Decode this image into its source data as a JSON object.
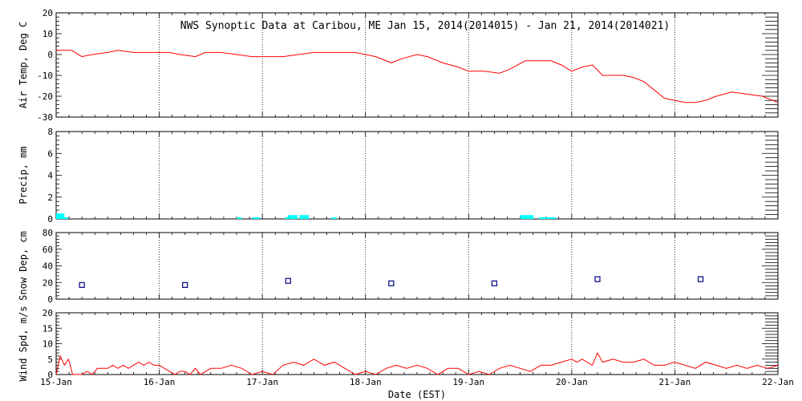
{
  "chart_data": {
    "type": "line",
    "title": "NWS Synoptic Data at Caribou, ME   Jan 15, 2014(2014015) - Jan 21, 2014(2014021)",
    "xlabel": "Date (EST)",
    "x_tick_labels": [
      "15-Jan",
      "16-Jan",
      "17-Jan",
      "18-Jan",
      "19-Jan",
      "20-Jan",
      "21-Jan",
      "22-Jan"
    ],
    "xlim_days": [
      0,
      7
    ],
    "grid": true,
    "panels": [
      {
        "key": "airtemp",
        "type": "line",
        "ylabel": "Air Temp, Deg C",
        "ylim": [
          -30,
          20
        ],
        "yticks": [
          -30,
          -20,
          -10,
          0,
          10,
          20
        ],
        "color": "#ff0000",
        "x": [
          0,
          0.15,
          0.25,
          0.35,
          0.5,
          0.6,
          0.75,
          0.9,
          1.0,
          1.1,
          1.2,
          1.35,
          1.45,
          1.6,
          1.75,
          1.9,
          2.0,
          2.2,
          2.35,
          2.5,
          2.6,
          2.75,
          2.9,
          3.0,
          3.1,
          3.25,
          3.35,
          3.5,
          3.6,
          3.75,
          3.9,
          4.0,
          4.15,
          4.3,
          4.4,
          4.55,
          4.65,
          4.8,
          4.9,
          5.0,
          5.1,
          5.2,
          5.3,
          5.4,
          5.5,
          5.6,
          5.7,
          5.8,
          5.9,
          6.0,
          6.1,
          6.2,
          6.3,
          6.4,
          6.55,
          6.7,
          6.85,
          7.0
        ],
        "y": [
          2,
          2,
          -1,
          0,
          1,
          2,
          1,
          1,
          1,
          1,
          0,
          -1,
          1,
          1,
          0,
          -1,
          -1,
          -1,
          0,
          1,
          1,
          1,
          1,
          0,
          -1,
          -4,
          -2,
          0,
          -1,
          -4,
          -6,
          -8,
          -8,
          -9,
          -7,
          -3,
          -3,
          -3,
          -5,
          -8,
          -6,
          -5,
          -10,
          -10,
          -10,
          -11,
          -13,
          -17,
          -21,
          -22,
          -23,
          -23,
          -22,
          -20,
          -18,
          -19,
          -20,
          -23
        ]
      },
      {
        "key": "precip",
        "type": "bar",
        "ylabel": "Precip, mm",
        "ylim": [
          0,
          8
        ],
        "yticks": [
          0,
          2,
          4,
          6,
          8
        ],
        "color": "#00ffff",
        "bars": [
          {
            "x0": 0.0,
            "x1": 0.08,
            "value": 0.5
          },
          {
            "x0": 0.08,
            "x1": 0.12,
            "value": 0.15
          },
          {
            "x0": 1.75,
            "x1": 1.8,
            "value": 0.15
          },
          {
            "x0": 1.9,
            "x1": 1.98,
            "value": 0.15
          },
          {
            "x0": 2.22,
            "x1": 2.25,
            "value": 0.15
          },
          {
            "x0": 2.25,
            "x1": 2.34,
            "value": 0.35
          },
          {
            "x0": 2.36,
            "x1": 2.45,
            "value": 0.35
          },
          {
            "x0": 2.67,
            "x1": 2.72,
            "value": 0.15
          },
          {
            "x0": 4.5,
            "x1": 4.63,
            "value": 0.35
          },
          {
            "x0": 4.68,
            "x1": 4.85,
            "value": 0.15
          }
        ]
      },
      {
        "key": "snowdep",
        "type": "scatter",
        "ylabel": "Snow Dep, cm",
        "ylim": [
          0,
          80
        ],
        "yticks": [
          0,
          20,
          40,
          60,
          80
        ],
        "color": "#000080",
        "x": [
          0.25,
          1.25,
          2.25,
          3.25,
          4.25,
          5.25,
          6.25
        ],
        "y": [
          17,
          17,
          22,
          19,
          19,
          24,
          24
        ]
      },
      {
        "key": "windspd",
        "type": "line",
        "ylabel": "Wind Spd, m/s",
        "ylim": [
          0,
          20
        ],
        "yticks": [
          0,
          5,
          10,
          15,
          20
        ],
        "color": "#ff0000",
        "x": [
          0,
          0.04,
          0.08,
          0.12,
          0.16,
          0.2,
          0.25,
          0.3,
          0.35,
          0.4,
          0.45,
          0.5,
          0.55,
          0.6,
          0.65,
          0.7,
          0.75,
          0.8,
          0.85,
          0.9,
          0.95,
          1.0,
          1.05,
          1.1,
          1.15,
          1.2,
          1.25,
          1.3,
          1.35,
          1.4,
          1.5,
          1.6,
          1.7,
          1.8,
          1.9,
          2.0,
          2.1,
          2.2,
          2.3,
          2.4,
          2.5,
          2.6,
          2.7,
          2.8,
          2.9,
          3.0,
          3.1,
          3.2,
          3.3,
          3.4,
          3.5,
          3.6,
          3.7,
          3.8,
          3.9,
          4.0,
          4.1,
          4.2,
          4.3,
          4.4,
          4.5,
          4.6,
          4.7,
          4.8,
          4.9,
          5.0,
          5.05,
          5.1,
          5.2,
          5.25,
          5.3,
          5.4,
          5.5,
          5.6,
          5.7,
          5.8,
          5.9,
          6.0,
          6.1,
          6.2,
          6.3,
          6.4,
          6.5,
          6.6,
          6.7,
          6.8,
          6.9,
          7.0
        ],
        "y": [
          0,
          6,
          3,
          5,
          0,
          0,
          0,
          1,
          0,
          2,
          2,
          2,
          3,
          2,
          3,
          2,
          3,
          4,
          3,
          4,
          3,
          3,
          2,
          1,
          0,
          1,
          1,
          0,
          2,
          0,
          2,
          2,
          3,
          2,
          0,
          1,
          0,
          3,
          4,
          3,
          5,
          3,
          4,
          2,
          0,
          1,
          0,
          2,
          3,
          2,
          3,
          2,
          0,
          2,
          2,
          0,
          1,
          0,
          2,
          3,
          2,
          1,
          3,
          3,
          4,
          5,
          4,
          5,
          3,
          7,
          4,
          5,
          4,
          4,
          5,
          3,
          3,
          4,
          3,
          2,
          4,
          3,
          2,
          3,
          2,
          3,
          2,
          3
        ]
      }
    ]
  }
}
